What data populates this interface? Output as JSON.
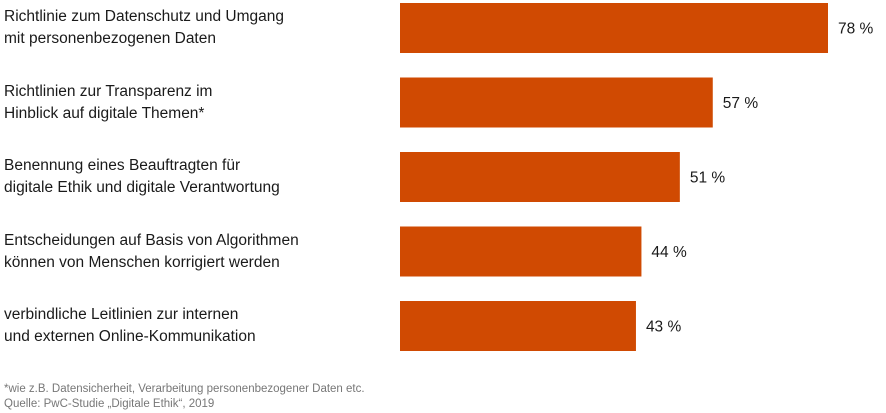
{
  "chart_data": {
    "type": "bar",
    "orientation": "horizontal",
    "categories": [
      "Richtlinie zum Datenschutz und Umgang\nmit personenbezogenen Daten",
      "Richtlinien zur Transparenz im\nHinblick auf digitale Themen*",
      "Benennung eines Beauftragten für\ndigitale Ethik und digitale Verantwortung",
      "Entscheidungen auf Basis von Algorithmen\nkönnen von Menschen korrigiert werden",
      "verbindliche Leitlinien zur internen\nund externen Online-Kommunikation"
    ],
    "values": [
      78,
      57,
      51,
      44,
      43
    ],
    "value_labels": [
      "78 %",
      "57 %",
      "51 %",
      "44 %",
      "43 %"
    ],
    "unit": "%",
    "xlim": [
      0,
      100
    ],
    "bar_color": "#d04a02",
    "grid": false,
    "legend": "none"
  },
  "footnotes": {
    "note": "*wie z.B. Datensicherheit, Verarbeitung personenbezogener Daten etc.",
    "source": "Quelle: PwC-Studie „Digitale Ethik“, 2019"
  }
}
